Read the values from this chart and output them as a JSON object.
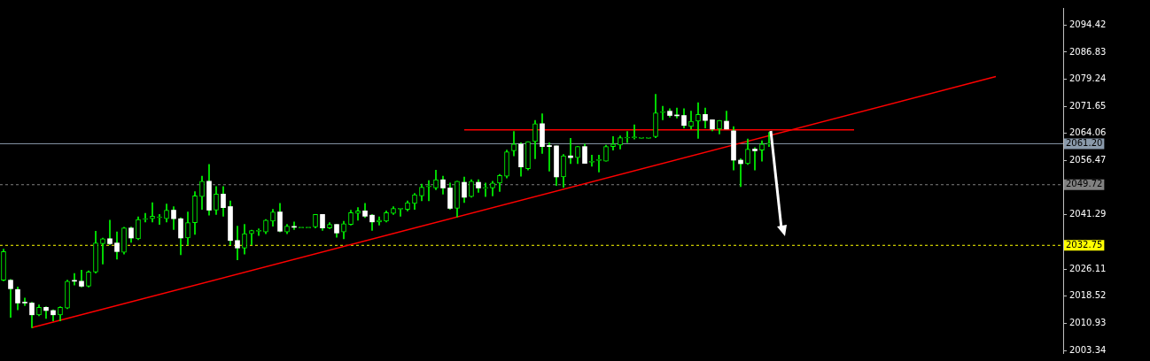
{
  "chart_data": {
    "type": "candlestick",
    "color": "#00ff00",
    "tick_labels": "y",
    "colors": [
      "#00ff00",
      "#ffffff",
      "#ffffff",
      "#ffffff",
      "#ffffff",
      "#00ff00",
      "#ffffff",
      "#ffffff",
      "#00ff00",
      "#00ff00",
      "#ffffff",
      "#ffffff",
      "#00ff00",
      "#00ff00",
      "#00ff00",
      "#ffffff",
      "#ffffff",
      "#00ff00",
      "#ffffff",
      "#00ff00",
      "#00ff00",
      "#00ff00",
      "#00ff00",
      "#00ff00",
      "#ffffff",
      "#ffffff",
      "#00ff00",
      "#00ff00",
      "#00ff00",
      "#ffffff",
      "#00ff00",
      "#ffffff",
      "#ffffff",
      "#ffffff",
      "#00ff00",
      "#00ff00",
      "#00ff00",
      "#00ff00",
      "#00ff00",
      "#ffffff",
      "#00ff00",
      "#ffffff",
      "#00ff00",
      "#00ff00",
      "#00ff00",
      "#ffffff",
      "#00ff00",
      "#ffffff",
      "#00ff00",
      "#00ff00",
      "#00ff00",
      "#ffffff",
      "#ffffff",
      "#00ff00",
      "#00ff00",
      "#00ff00",
      "#00ff00",
      "#00ff00",
      "#00ff00",
      "#00ff00",
      "#00ff00",
      "#00ff00",
      "#ffffff",
      "#ffffff",
      "#00ff00",
      "#ffffff",
      "#00ff00",
      "#ffffff",
      "#00ff00",
      "#00ff00",
      "#00ff00",
      "#00ff00",
      "#00ff00",
      "#ffffff",
      "#00ff00",
      "#00ff00",
      "#ffffff",
      "#ffffff",
      "#ffffff",
      "#00ff00",
      "#ffffff",
      "#00ff00",
      "#ffffff",
      "#00ff00",
      "#00ff00",
      "#00ff00",
      "#00ff00",
      "#00ff00",
      "#00ff00",
      "#00ff00",
      "#00ff00",
      "#00ff00",
      "#00ff00",
      "#00ff00",
      "#ffffff",
      "#ffffff",
      "#ffffff",
      "#00ff00",
      "#00ff00",
      "#ffffff",
      "#ffffff",
      "#00ff00",
      "#ffffff",
      "#ffffff",
      "#ffffff",
      "#00ff00",
      "#ffffff",
      "#00ff00",
      "#00ff00",
      null,
      null,
      null,
      null,
      null,
      null,
      null,
      null,
      null,
      null,
      null,
      null,
      null,
      null,
      null,
      null,
      null,
      null,
      null,
      null,
      null,
      null,
      null,
      null,
      null,
      null,
      null,
      null,
      null,
      null,
      null,
      null,
      null,
      null,
      null,
      null,
      null,
      null,
      null,
      null,
      null
    ],
    "categories": [
      null,
      null,
      null,
      null,
      null,
      null,
      null,
      null,
      null,
      null,
      null,
      null,
      null,
      null,
      null,
      null,
      null,
      null,
      null,
      null,
      null,
      null,
      null,
      null,
      null,
      null,
      null,
      null,
      null,
      null,
      null,
      null,
      null,
      null,
      null,
      null,
      null,
      null,
      null,
      null,
      null,
      null,
      null,
      null,
      null,
      null,
      null,
      null,
      null,
      null,
      null,
      null,
      null,
      null,
      null,
      null,
      null,
      null,
      null,
      null,
      null,
      null,
      null,
      null,
      null,
      null,
      null,
      null,
      null,
      null,
      null,
      null,
      null,
      null,
      null,
      null,
      null,
      null,
      null,
      null,
      null,
      null,
      null,
      null,
      null,
      null,
      null,
      null,
      null,
      null,
      null,
      null,
      null,
      null,
      null,
      null,
      null,
      null,
      null,
      null,
      null,
      null,
      null,
      null,
      null,
      null,
      null,
      null,
      null,
      null,
      null,
      null,
      null,
      null,
      null,
      null,
      null,
      null,
      null,
      null,
      null,
      null,
      null,
      null,
      null,
      null,
      null,
      null,
      null,
      null,
      null,
      null,
      null,
      null,
      null,
      null,
      null,
      null,
      null,
      null,
      null,
      null,
      null,
      null,
      null,
      null,
      null,
      null,
      null,
      null
    ],
    "ohlc": [
      [
        2023.0,
        2031.7,
        2022.8,
        2031.0
      ],
      [
        2023.0,
        2023.2,
        2012.6,
        2020.6
      ],
      [
        2020.4,
        2021.1,
        2014.7,
        2016.6
      ],
      [
        2016.8,
        2018.0,
        2015.9,
        2016.6
      ],
      [
        2016.6,
        2016.8,
        2009.7,
        2013.3
      ],
      [
        2013.3,
        2016.1,
        2013.0,
        2015.4
      ],
      [
        2015.4,
        2015.6,
        2012.3,
        2014.5
      ],
      [
        2014.5,
        2014.7,
        2011.6,
        2013.3
      ],
      [
        2013.3,
        2015.6,
        2011.6,
        2015.4
      ],
      [
        2015.2,
        2023.0,
        2015.0,
        2022.7
      ],
      [
        2022.8,
        2024.9,
        2021.6,
        2022.7
      ],
      [
        2022.7,
        2025.8,
        2021.1,
        2021.3
      ],
      [
        2021.3,
        2025.6,
        2021.1,
        2025.3
      ],
      [
        2025.3,
        2036.7,
        2025.0,
        2033.4
      ],
      [
        2033.2,
        2034.8,
        2027.5,
        2034.6
      ],
      [
        2034.6,
        2039.8,
        2032.9,
        2033.2
      ],
      [
        2033.4,
        2036.5,
        2028.9,
        2031.0
      ],
      [
        2030.8,
        2037.8,
        2030.3,
        2037.6
      ],
      [
        2037.6,
        2037.9,
        2033.6,
        2034.8
      ],
      [
        2034.6,
        2040.7,
        2034.3,
        2040.0
      ],
      [
        2040.0,
        2041.7,
        2039.3,
        2040.2
      ],
      [
        2040.2,
        2044.7,
        2039.3,
        2040.9
      ],
      [
        2040.5,
        2041.4,
        2038.6,
        2040.7
      ],
      [
        2040.2,
        2044.3,
        2039.3,
        2042.6
      ],
      [
        2042.6,
        2043.6,
        2037.2,
        2040.2
      ],
      [
        2040.2,
        2040.5,
        2030.1,
        2034.8
      ],
      [
        2034.8,
        2042.1,
        2032.9,
        2039.1
      ],
      [
        2039.1,
        2047.8,
        2035.8,
        2046.6
      ],
      [
        2046.4,
        2052.1,
        2042.8,
        2050.7
      ],
      [
        2050.7,
        2055.4,
        2041.2,
        2042.6
      ],
      [
        2042.6,
        2049.2,
        2041.4,
        2047.1
      ],
      [
        2047.1,
        2049.2,
        2040.9,
        2043.3
      ],
      [
        2043.6,
        2045.2,
        2032.9,
        2034.1
      ],
      [
        2034.1,
        2038.1,
        2028.7,
        2032.0
      ],
      [
        2032.0,
        2038.6,
        2030.3,
        2036.0
      ],
      [
        2036.0,
        2037.0,
        2032.9,
        2036.9
      ],
      [
        2036.7,
        2037.4,
        2035.5,
        2036.9
      ],
      [
        2036.5,
        2040.0,
        2036.0,
        2039.8
      ],
      [
        2039.5,
        2042.8,
        2038.1,
        2042.1
      ],
      [
        2042.1,
        2044.5,
        2036.5,
        2036.7
      ],
      [
        2036.5,
        2038.6,
        2036.0,
        2038.1
      ],
      [
        2037.9,
        2039.3,
        2037.2,
        2037.8
      ],
      [
        2037.6,
        2037.6,
        2037.6,
        2037.6
      ],
      [
        2037.6,
        2037.6,
        2037.6,
        2037.6
      ],
      [
        2037.9,
        2041.4,
        2037.6,
        2041.4
      ],
      [
        2041.4,
        2041.4,
        2036.9,
        2037.6
      ],
      [
        2037.6,
        2039.1,
        2037.4,
        2038.6
      ],
      [
        2038.6,
        2038.6,
        2035.0,
        2036.2
      ],
      [
        2036.5,
        2039.5,
        2034.6,
        2038.8
      ],
      [
        2038.6,
        2042.6,
        2038.4,
        2041.9
      ],
      [
        2041.7,
        2043.3,
        2039.8,
        2042.4
      ],
      [
        2042.4,
        2044.5,
        2040.5,
        2040.9
      ],
      [
        2041.2,
        2041.4,
        2036.9,
        2039.3
      ],
      [
        2039.3,
        2040.7,
        2038.4,
        2039.8
      ],
      [
        2039.5,
        2042.4,
        2039.3,
        2041.9
      ],
      [
        2041.7,
        2043.6,
        2041.4,
        2043.1
      ],
      [
        2042.9,
        2043.1,
        2040.9,
        2043.1
      ],
      [
        2042.8,
        2045.2,
        2042.4,
        2044.7
      ],
      [
        2044.5,
        2047.3,
        2042.8,
        2046.9
      ],
      [
        2046.6,
        2049.9,
        2045.2,
        2049.0
      ],
      [
        2049.1,
        2050.9,
        2045.2,
        2049.3
      ],
      [
        2048.8,
        2053.8,
        2048.3,
        2051.1
      ],
      [
        2051.1,
        2052.1,
        2047.1,
        2048.8
      ],
      [
        2048.8,
        2050.2,
        2042.8,
        2043.1
      ],
      [
        2043.1,
        2050.7,
        2040.7,
        2050.7
      ],
      [
        2050.4,
        2051.9,
        2044.7,
        2046.2
      ],
      [
        2046.4,
        2051.1,
        2046.2,
        2050.7
      ],
      [
        2050.4,
        2051.1,
        2047.6,
        2048.8
      ],
      [
        2048.7,
        2050.2,
        2046.4,
        2048.8
      ],
      [
        2048.8,
        2050.7,
        2046.6,
        2050.2
      ],
      [
        2050.2,
        2052.6,
        2047.8,
        2052.3
      ],
      [
        2052.1,
        2059.4,
        2051.6,
        2058.9
      ],
      [
        2059.2,
        2064.6,
        2057.8,
        2061.1
      ],
      [
        2061.1,
        2061.5,
        2052.1,
        2054.7
      ],
      [
        2054.2,
        2061.8,
        2053.8,
        2061.8
      ],
      [
        2061.8,
        2067.7,
        2057.0,
        2066.8
      ],
      [
        2066.8,
        2069.6,
        2058.5,
        2060.4
      ],
      [
        2060.7,
        2061.5,
        2053.5,
        2060.4
      ],
      [
        2060.6,
        2060.6,
        2049.5,
        2051.9
      ],
      [
        2051.9,
        2058.2,
        2049.0,
        2057.8
      ],
      [
        2057.8,
        2062.7,
        2055.6,
        2057.3
      ],
      [
        2057.3,
        2060.4,
        2055.6,
        2060.4
      ],
      [
        2060.4,
        2061.1,
        2055.7,
        2055.7
      ],
      [
        2056.0,
        2058.0,
        2054.9,
        2056.2
      ],
      [
        2056.5,
        2058.0,
        2053.3,
        2056.7
      ],
      [
        2056.3,
        2060.8,
        2056.3,
        2060.4
      ],
      [
        2060.4,
        2063.2,
        2059.4,
        2061.1
      ],
      [
        2060.8,
        2063.4,
        2059.7,
        2062.9
      ],
      [
        2062.8,
        2064.6,
        2061.5,
        2063.0
      ],
      [
        2062.9,
        2066.5,
        2062.5,
        2063.0
      ],
      [
        2062.7,
        2062.7,
        2062.7,
        2062.7
      ],
      [
        2062.7,
        2062.7,
        2062.7,
        2062.7
      ],
      [
        2063.2,
        2075.0,
        2062.9,
        2069.8
      ],
      [
        2069.9,
        2071.7,
        2067.9,
        2070.1
      ],
      [
        2070.3,
        2071.0,
        2068.6,
        2069.1
      ],
      [
        2069.2,
        2071.2,
        2068.4,
        2069.0
      ],
      [
        2069.1,
        2071.0,
        2065.6,
        2066.3
      ],
      [
        2066.0,
        2070.3,
        2065.3,
        2067.5
      ],
      [
        2067.5,
        2072.7,
        2062.7,
        2069.4
      ],
      [
        2069.4,
        2071.2,
        2065.6,
        2067.7
      ],
      [
        2067.9,
        2067.9,
        2064.8,
        2065.3
      ],
      [
        2065.3,
        2067.7,
        2063.9,
        2067.7
      ],
      [
        2067.5,
        2070.3,
        2065.3,
        2065.3
      ],
      [
        2064.8,
        2066.0,
        2053.8,
        2056.6
      ],
      [
        2056.6,
        2057.0,
        2049.2,
        2055.6
      ],
      [
        2055.6,
        2062.5,
        2055.4,
        2059.7
      ],
      [
        2059.7,
        2060.1,
        2053.8,
        2059.2
      ],
      [
        2059.4,
        2062.0,
        2056.3,
        2061.1
      ],
      [
        2061.1,
        2064.4,
        2060.4,
        2061.2
      ],
      null,
      null,
      null,
      null,
      null,
      null,
      null,
      null,
      null,
      null,
      null,
      null,
      null,
      null,
      null,
      null,
      null,
      null,
      null,
      null,
      null,
      null,
      null,
      null,
      null,
      null,
      null,
      null,
      null,
      null,
      null,
      null,
      null,
      null,
      null,
      null,
      null,
      null,
      null,
      null,
      null
    ],
    "series": [
      {
        "type": "line",
        "color": "#ff0000",
        "values": [
          null,
          null,
          null,
          null,
          2009.7,
          null,
          null,
          null,
          null,
          null,
          null,
          null,
          null,
          null,
          null,
          null,
          null,
          null,
          null,
          null,
          null,
          null,
          null,
          null,
          null,
          null,
          null,
          null,
          null,
          null,
          null,
          null,
          null,
          null,
          null,
          null,
          null,
          null,
          null,
          null,
          null,
          null,
          null,
          null,
          null,
          null,
          null,
          null,
          null,
          null,
          null,
          null,
          null,
          null,
          null,
          null,
          null,
          null,
          null,
          null,
          null,
          null,
          null,
          null,
          null,
          null,
          null,
          null,
          null,
          null,
          null,
          null,
          null,
          null,
          null,
          null,
          null,
          null,
          null,
          null,
          null,
          null,
          null,
          null,
          null,
          null,
          null,
          null,
          null,
          null,
          null,
          null,
          null,
          null,
          null,
          null,
          null,
          null,
          null,
          null,
          null,
          null,
          null,
          null,
          null,
          null,
          null,
          null,
          null,
          null,
          null,
          null,
          null,
          null,
          null,
          null,
          null,
          null,
          null,
          null,
          null,
          null,
          null,
          null,
          null,
          null,
          null,
          null,
          null,
          null,
          null,
          null,
          null,
          null,
          null,
          null,
          null,
          null,
          null,
          null,
          2080.0,
          null,
          null,
          null,
          null,
          null,
          null,
          null,
          null,
          null
        ]
      },
      {
        "type": "line",
        "color": "#ff0000",
        "values": [
          null,
          null,
          null,
          null,
          null,
          null,
          null,
          null,
          null,
          null,
          null,
          null,
          null,
          null,
          null,
          null,
          null,
          null,
          null,
          null,
          null,
          null,
          null,
          null,
          null,
          null,
          null,
          null,
          null,
          null,
          null,
          null,
          null,
          null,
          null,
          null,
          null,
          null,
          null,
          null,
          null,
          null,
          null,
          null,
          null,
          null,
          null,
          null,
          null,
          null,
          null,
          null,
          null,
          null,
          null,
          null,
          null,
          null,
          null,
          null,
          null,
          null,
          null,
          null,
          null,
          2065.1,
          null,
          null,
          null,
          null,
          null,
          null,
          null,
          null,
          null,
          null,
          null,
          null,
          null,
          null,
          null,
          null,
          null,
          null,
          null,
          null,
          null,
          null,
          null,
          null,
          null,
          null,
          null,
          null,
          null,
          null,
          null,
          null,
          null,
          null,
          null,
          null,
          null,
          null,
          null,
          null,
          null,
          null,
          null,
          null,
          null,
          null,
          null,
          null,
          null,
          null,
          null,
          null,
          null,
          null,
          2065.1,
          null,
          null,
          null,
          null,
          null,
          null,
          null,
          null,
          null,
          null,
          null,
          null,
          null,
          null,
          null,
          null,
          null,
          null,
          null,
          null,
          null,
          null,
          null,
          null,
          null,
          null,
          null,
          null,
          null
        ]
      }
    ],
    "ylim": [
      2002.6,
      2099.2
    ],
    "yticks": [
      2003.34,
      2010.93,
      2018.52,
      2026.11,
      {
        "value": 2033.7,
        "label": null
      },
      2041.29,
      {
        "value": 2048.88,
        "label": null
      },
      2056.47,
      2064.06,
      2071.65,
      2079.24,
      2086.83,
      2094.42
    ],
    "ref_lines": [
      {
        "axis": "y",
        "value": 2061.2,
        "label": "2061.20",
        "color": "#8a9aab",
        "line_style": "solid"
      },
      {
        "axis": "y",
        "value": 2049.72,
        "label": "2049.72",
        "color": "#808080",
        "line_style": "dashed"
      },
      {
        "axis": "y",
        "value": 2032.75,
        "label": "2032.75",
        "color": "#ffff00",
        "line_style": "dashed"
      }
    ]
  }
}
